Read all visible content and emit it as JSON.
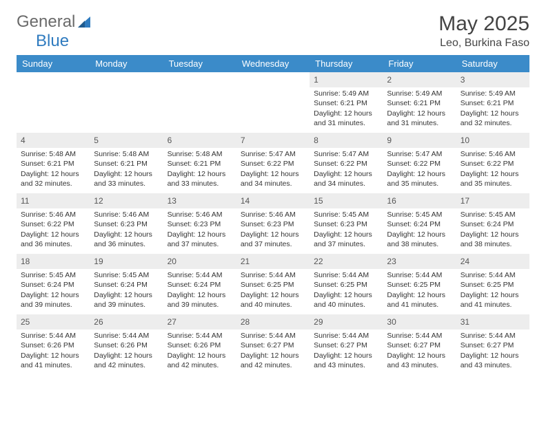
{
  "brand": {
    "part1": "General",
    "part2": "Blue"
  },
  "title": "May 2025",
  "location": "Leo, Burkina Faso",
  "weekdays": [
    "Sunday",
    "Monday",
    "Tuesday",
    "Wednesday",
    "Thursday",
    "Friday",
    "Saturday"
  ],
  "colors": {
    "header_bg": "#3b8bc9",
    "header_text": "#ffffff",
    "daynum_bg": "#ededed",
    "brand_blue": "#2f7bbf",
    "brand_gray": "#6a6a6a"
  },
  "weeks": [
    [
      {
        "n": "",
        "sr": "",
        "ss": "",
        "dl": ""
      },
      {
        "n": "",
        "sr": "",
        "ss": "",
        "dl": ""
      },
      {
        "n": "",
        "sr": "",
        "ss": "",
        "dl": ""
      },
      {
        "n": "",
        "sr": "",
        "ss": "",
        "dl": ""
      },
      {
        "n": "1",
        "sr": "Sunrise: 5:49 AM",
        "ss": "Sunset: 6:21 PM",
        "dl": "Daylight: 12 hours and 31 minutes."
      },
      {
        "n": "2",
        "sr": "Sunrise: 5:49 AM",
        "ss": "Sunset: 6:21 PM",
        "dl": "Daylight: 12 hours and 31 minutes."
      },
      {
        "n": "3",
        "sr": "Sunrise: 5:49 AM",
        "ss": "Sunset: 6:21 PM",
        "dl": "Daylight: 12 hours and 32 minutes."
      }
    ],
    [
      {
        "n": "4",
        "sr": "Sunrise: 5:48 AM",
        "ss": "Sunset: 6:21 PM",
        "dl": "Daylight: 12 hours and 32 minutes."
      },
      {
        "n": "5",
        "sr": "Sunrise: 5:48 AM",
        "ss": "Sunset: 6:21 PM",
        "dl": "Daylight: 12 hours and 33 minutes."
      },
      {
        "n": "6",
        "sr": "Sunrise: 5:48 AM",
        "ss": "Sunset: 6:21 PM",
        "dl": "Daylight: 12 hours and 33 minutes."
      },
      {
        "n": "7",
        "sr": "Sunrise: 5:47 AM",
        "ss": "Sunset: 6:22 PM",
        "dl": "Daylight: 12 hours and 34 minutes."
      },
      {
        "n": "8",
        "sr": "Sunrise: 5:47 AM",
        "ss": "Sunset: 6:22 PM",
        "dl": "Daylight: 12 hours and 34 minutes."
      },
      {
        "n": "9",
        "sr": "Sunrise: 5:47 AM",
        "ss": "Sunset: 6:22 PM",
        "dl": "Daylight: 12 hours and 35 minutes."
      },
      {
        "n": "10",
        "sr": "Sunrise: 5:46 AM",
        "ss": "Sunset: 6:22 PM",
        "dl": "Daylight: 12 hours and 35 minutes."
      }
    ],
    [
      {
        "n": "11",
        "sr": "Sunrise: 5:46 AM",
        "ss": "Sunset: 6:22 PM",
        "dl": "Daylight: 12 hours and 36 minutes."
      },
      {
        "n": "12",
        "sr": "Sunrise: 5:46 AM",
        "ss": "Sunset: 6:23 PM",
        "dl": "Daylight: 12 hours and 36 minutes."
      },
      {
        "n": "13",
        "sr": "Sunrise: 5:46 AM",
        "ss": "Sunset: 6:23 PM",
        "dl": "Daylight: 12 hours and 37 minutes."
      },
      {
        "n": "14",
        "sr": "Sunrise: 5:46 AM",
        "ss": "Sunset: 6:23 PM",
        "dl": "Daylight: 12 hours and 37 minutes."
      },
      {
        "n": "15",
        "sr": "Sunrise: 5:45 AM",
        "ss": "Sunset: 6:23 PM",
        "dl": "Daylight: 12 hours and 37 minutes."
      },
      {
        "n": "16",
        "sr": "Sunrise: 5:45 AM",
        "ss": "Sunset: 6:24 PM",
        "dl": "Daylight: 12 hours and 38 minutes."
      },
      {
        "n": "17",
        "sr": "Sunrise: 5:45 AM",
        "ss": "Sunset: 6:24 PM",
        "dl": "Daylight: 12 hours and 38 minutes."
      }
    ],
    [
      {
        "n": "18",
        "sr": "Sunrise: 5:45 AM",
        "ss": "Sunset: 6:24 PM",
        "dl": "Daylight: 12 hours and 39 minutes."
      },
      {
        "n": "19",
        "sr": "Sunrise: 5:45 AM",
        "ss": "Sunset: 6:24 PM",
        "dl": "Daylight: 12 hours and 39 minutes."
      },
      {
        "n": "20",
        "sr": "Sunrise: 5:44 AM",
        "ss": "Sunset: 6:24 PM",
        "dl": "Daylight: 12 hours and 39 minutes."
      },
      {
        "n": "21",
        "sr": "Sunrise: 5:44 AM",
        "ss": "Sunset: 6:25 PM",
        "dl": "Daylight: 12 hours and 40 minutes."
      },
      {
        "n": "22",
        "sr": "Sunrise: 5:44 AM",
        "ss": "Sunset: 6:25 PM",
        "dl": "Daylight: 12 hours and 40 minutes."
      },
      {
        "n": "23",
        "sr": "Sunrise: 5:44 AM",
        "ss": "Sunset: 6:25 PM",
        "dl": "Daylight: 12 hours and 41 minutes."
      },
      {
        "n": "24",
        "sr": "Sunrise: 5:44 AM",
        "ss": "Sunset: 6:25 PM",
        "dl": "Daylight: 12 hours and 41 minutes."
      }
    ],
    [
      {
        "n": "25",
        "sr": "Sunrise: 5:44 AM",
        "ss": "Sunset: 6:26 PM",
        "dl": "Daylight: 12 hours and 41 minutes."
      },
      {
        "n": "26",
        "sr": "Sunrise: 5:44 AM",
        "ss": "Sunset: 6:26 PM",
        "dl": "Daylight: 12 hours and 42 minutes."
      },
      {
        "n": "27",
        "sr": "Sunrise: 5:44 AM",
        "ss": "Sunset: 6:26 PM",
        "dl": "Daylight: 12 hours and 42 minutes."
      },
      {
        "n": "28",
        "sr": "Sunrise: 5:44 AM",
        "ss": "Sunset: 6:27 PM",
        "dl": "Daylight: 12 hours and 42 minutes."
      },
      {
        "n": "29",
        "sr": "Sunrise: 5:44 AM",
        "ss": "Sunset: 6:27 PM",
        "dl": "Daylight: 12 hours and 43 minutes."
      },
      {
        "n": "30",
        "sr": "Sunrise: 5:44 AM",
        "ss": "Sunset: 6:27 PM",
        "dl": "Daylight: 12 hours and 43 minutes."
      },
      {
        "n": "31",
        "sr": "Sunrise: 5:44 AM",
        "ss": "Sunset: 6:27 PM",
        "dl": "Daylight: 12 hours and 43 minutes."
      }
    ]
  ]
}
